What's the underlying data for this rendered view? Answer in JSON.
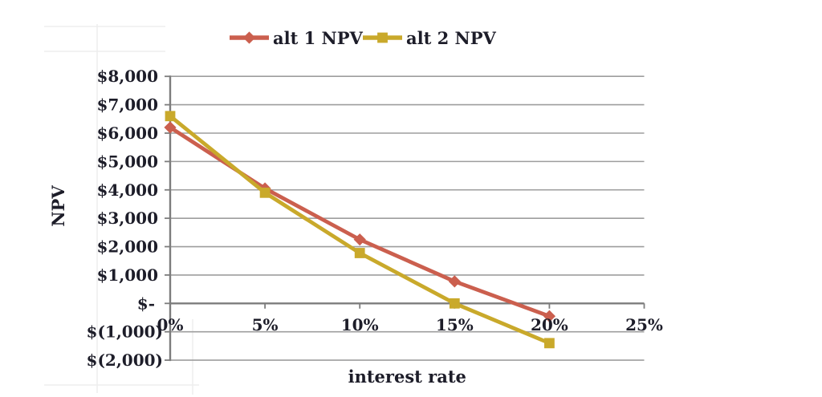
{
  "chart_data": {
    "type": "line",
    "xlabel": "interest rate",
    "ylabel": "NPV",
    "x": [
      0,
      5,
      10,
      15,
      20
    ],
    "series": [
      {
        "name": "alt 1 NPV",
        "color": "#CB5F4E",
        "marker": "diamond",
        "values": [
          6200,
          4050,
          2250,
          775,
          -450
        ]
      },
      {
        "name": "alt 2 NPV",
        "color": "#C9A92B",
        "marker": "square",
        "values": [
          6600,
          3900,
          1775,
          0,
          -1400
        ]
      }
    ],
    "xlim": [
      0,
      25
    ],
    "ylim": [
      -2000,
      8000
    ],
    "x_ticks": [
      0,
      5,
      10,
      15,
      20,
      25
    ],
    "x_tick_labels": [
      "0%",
      "5%",
      "10%",
      "15%",
      "20%",
      "25%"
    ],
    "y_ticks": [
      8000,
      7000,
      6000,
      5000,
      4000,
      3000,
      2000,
      1000,
      0,
      -1000,
      -2000
    ],
    "y_tick_labels": [
      "$8,000",
      "$7,000",
      "$6,000",
      "$5,000",
      "$4,000",
      "$3,000",
      "$2,000",
      "$1,000",
      "$-",
      "$(1,000)",
      "$(2,000)"
    ],
    "grid": "horizontal",
    "legend_position": "top-center"
  },
  "colors": {
    "series1": "#CB5F4E",
    "series2": "#C9A92B",
    "gridline": "#9E9E9E",
    "axis": "#7D7D7D",
    "text": "#1D1D29",
    "worksheet_line": "#EDEDED",
    "background": "#FFFFFF"
  }
}
